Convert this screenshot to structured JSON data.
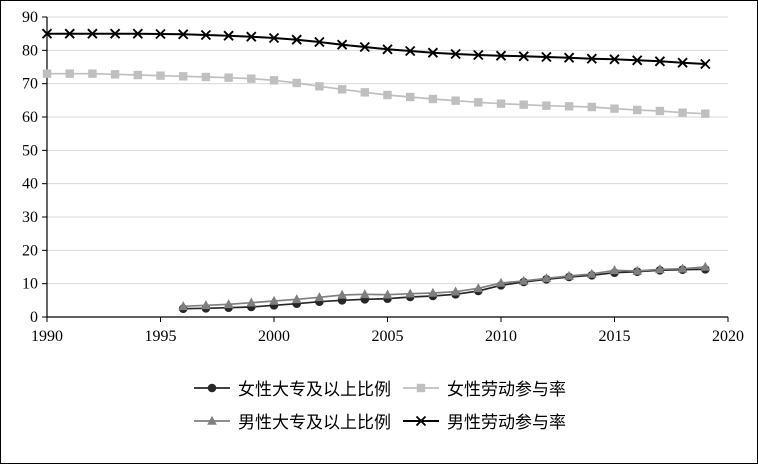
{
  "chart_data": {
    "type": "line",
    "title": "",
    "xlabel": "",
    "ylabel": "",
    "xlim": [
      1990,
      2020
    ],
    "ylim": [
      0,
      90
    ],
    "x_ticks": [
      1990,
      1995,
      2000,
      2005,
      2010,
      2015,
      2020
    ],
    "y_ticks": [
      0,
      10,
      20,
      30,
      40,
      50,
      60,
      70,
      80,
      90
    ],
    "grid": "horizontal",
    "legend_position": "bottom",
    "axis_color": "#000000",
    "grid_color": "#d9d9d9",
    "series": [
      {
        "name": "女性大专及以上比例",
        "marker": "circle",
        "color": "#262626",
        "x_start": 1996,
        "values": [
          2.5,
          2.6,
          2.8,
          3.0,
          3.5,
          4.0,
          4.6,
          5.0,
          5.3,
          5.5,
          6.0,
          6.3,
          6.8,
          7.8,
          9.5,
          10.5,
          11.3,
          12.0,
          12.5,
          13.3,
          13.6,
          14.0,
          14.2,
          14.3
        ]
      },
      {
        "name": "女性劳动参与率",
        "marker": "square",
        "color": "#bfbfbf",
        "x_start": 1990,
        "values": [
          73.0,
          73.0,
          73.0,
          72.8,
          72.6,
          72.4,
          72.2,
          72.0,
          71.8,
          71.5,
          71.0,
          70.2,
          69.2,
          68.3,
          67.4,
          66.6,
          66.0,
          65.4,
          64.9,
          64.4,
          64.0,
          63.7,
          63.4,
          63.2,
          63.0,
          62.5,
          62.1,
          61.8,
          61.3,
          61.0
        ]
      },
      {
        "name": "男性大专及以上比例",
        "marker": "triangle",
        "color": "#7f7f7f",
        "x_start": 1996,
        "values": [
          3.2,
          3.5,
          3.8,
          4.3,
          4.8,
          5.3,
          5.9,
          6.6,
          6.8,
          6.7,
          7.0,
          7.2,
          7.6,
          8.6,
          10.2,
          10.8,
          11.6,
          12.3,
          12.9,
          14.0,
          13.8,
          14.3,
          14.5,
          15.0
        ]
      },
      {
        "name": "男性劳动参与率",
        "marker": "x",
        "color": "#000000",
        "x_start": 1990,
        "values": [
          85.0,
          85.0,
          85.0,
          85.0,
          85.0,
          84.9,
          84.8,
          84.6,
          84.4,
          84.1,
          83.7,
          83.2,
          82.5,
          81.7,
          81.0,
          80.3,
          79.8,
          79.3,
          78.9,
          78.6,
          78.4,
          78.2,
          78.0,
          77.8,
          77.5,
          77.3,
          77.0,
          76.7,
          76.3,
          75.9
        ]
      }
    ]
  }
}
